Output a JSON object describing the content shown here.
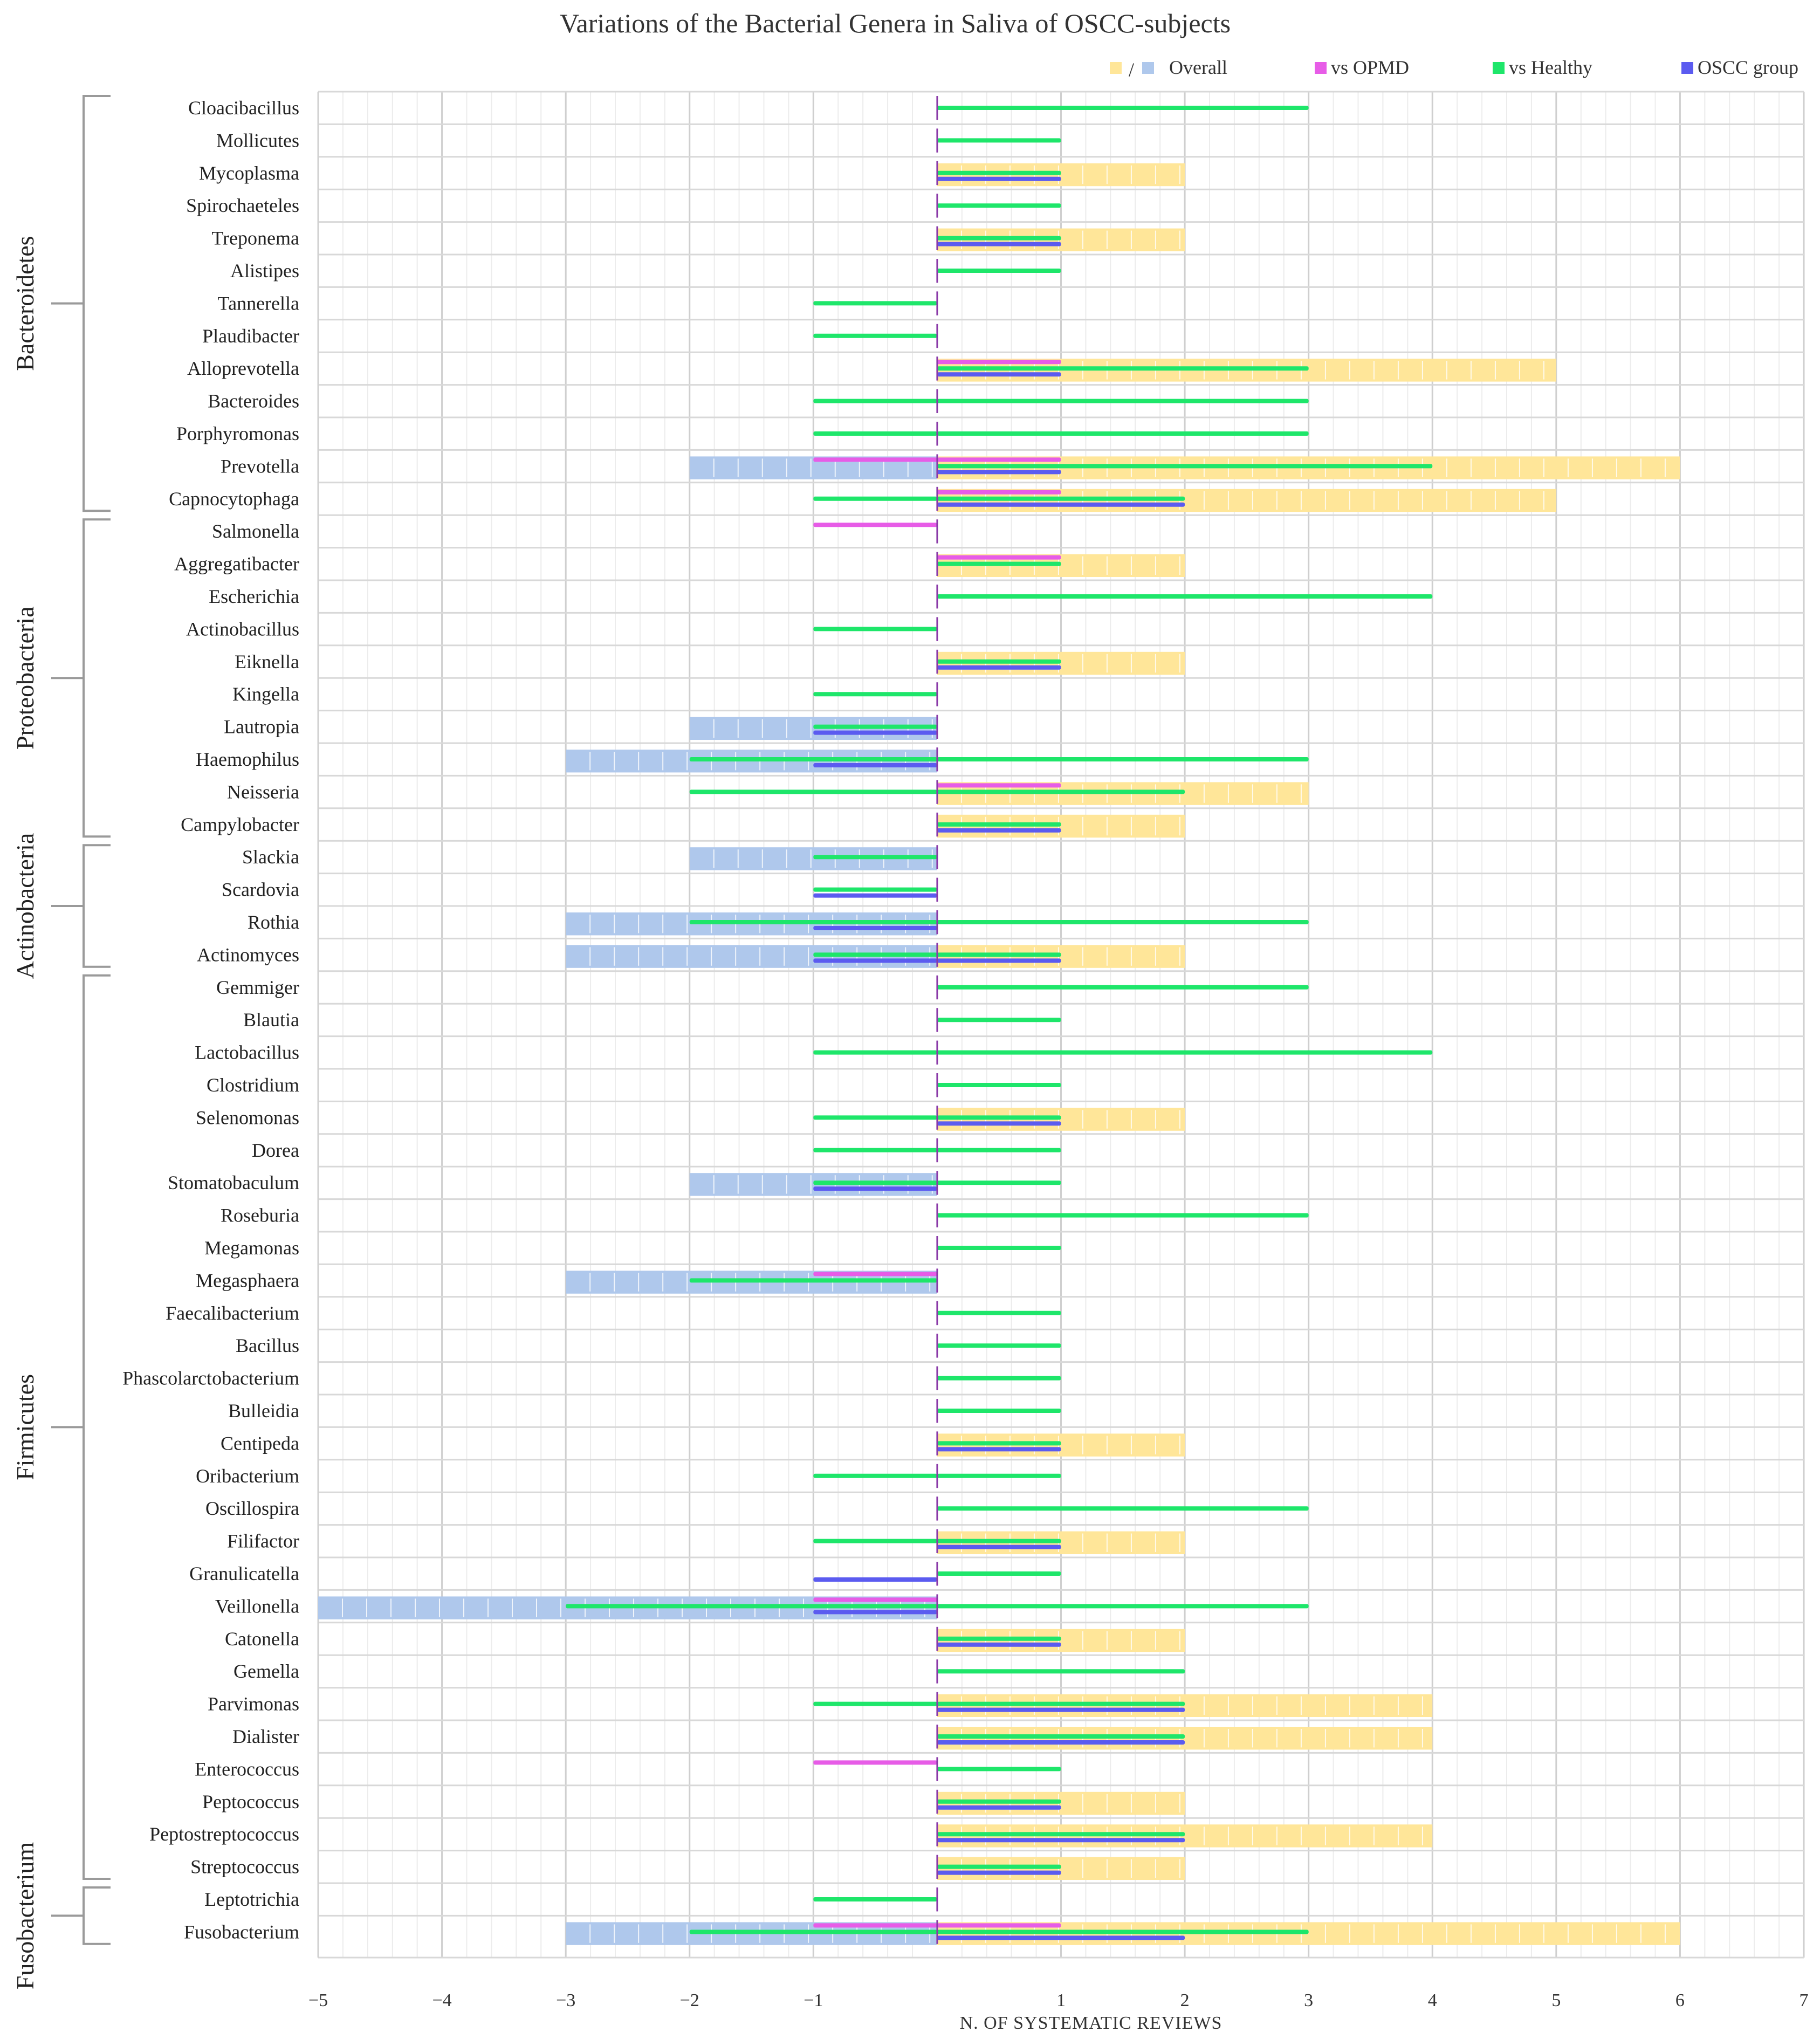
{
  "chart_data": {
    "type": "bar",
    "orientation": "horizontal",
    "title": "Variations of the Bacterial Genera in Saliva of OSCC-subjects",
    "xlabel": "N. OF SYSTEMATIC REVIEWS",
    "ylabel": "",
    "xlim": [
      -5,
      7
    ],
    "xticks": [
      -5,
      -4,
      -3,
      -2,
      -1,
      1,
      2,
      3,
      4,
      5,
      6,
      7
    ],
    "grid": true,
    "legend_position": "top-right",
    "legend": [
      {
        "key": "overall",
        "label": "Overall",
        "colors": [
          "#FFE699",
          "#AFC8EC"
        ],
        "separator": "/"
      },
      {
        "key": "opmd",
        "label": "vs OPMD",
        "color": "#E75CE7"
      },
      {
        "key": "healthy",
        "label": "vs Healthy",
        "color": "#1EE66A"
      },
      {
        "key": "oscc",
        "label": "OSCC group",
        "color": "#5B5BF0"
      }
    ],
    "colors": {
      "overall_pos": "#FFE699",
      "overall_neg": "#AFC8EC",
      "opmd": "#E75CE7",
      "healthy": "#1EE66A",
      "oscc": "#5B5BF0"
    },
    "phyla": [
      {
        "name": "Bacteroidetes",
        "first": "Cloacibacillus",
        "last": "Capnocytophaga"
      },
      {
        "name": "Proteobacteria",
        "first": "Salmonella",
        "last": "Campylobacter"
      },
      {
        "name": "Actinobacteria",
        "first": "Slackia",
        "last": "Actinomyces"
      },
      {
        "name": "Firmicutes",
        "first": "Gemmiger",
        "last": "Streptococcus"
      },
      {
        "name": "Fusobacterium",
        "first": "Leptotrichia",
        "last": "Fusobacterium"
      }
    ],
    "series_keys": [
      "overall_pos",
      "overall_neg",
      "opmd_pos",
      "opmd_neg",
      "healthy_pos",
      "healthy_neg",
      "oscc_pos",
      "oscc_neg"
    ],
    "genera": [
      {
        "name": "Cloacibacillus",
        "overall": [
          0,
          0
        ],
        "opmd": [
          0,
          0
        ],
        "healthy": [
          3,
          0
        ],
        "oscc": [
          0,
          0
        ]
      },
      {
        "name": "Mollicutes",
        "overall": [
          0,
          0
        ],
        "opmd": [
          0,
          0
        ],
        "healthy": [
          1,
          0
        ],
        "oscc": [
          0,
          0
        ]
      },
      {
        "name": "Mycoplasma",
        "overall": [
          2,
          0
        ],
        "opmd": [
          0,
          0
        ],
        "healthy": [
          1,
          0
        ],
        "oscc": [
          1,
          0
        ]
      },
      {
        "name": "Spirochaeteles",
        "overall": [
          0,
          0
        ],
        "opmd": [
          0,
          0
        ],
        "healthy": [
          1,
          0
        ],
        "oscc": [
          0,
          0
        ]
      },
      {
        "name": "Treponema",
        "overall": [
          2,
          0
        ],
        "opmd": [
          0,
          0
        ],
        "healthy": [
          1,
          0
        ],
        "oscc": [
          1,
          0
        ]
      },
      {
        "name": "Alistipes",
        "overall": [
          0,
          0
        ],
        "opmd": [
          0,
          0
        ],
        "healthy": [
          1,
          0
        ],
        "oscc": [
          0,
          0
        ]
      },
      {
        "name": "Tannerella",
        "overall": [
          0,
          0
        ],
        "opmd": [
          0,
          0
        ],
        "healthy": [
          0,
          -1
        ],
        "oscc": [
          0,
          0
        ]
      },
      {
        "name": "Plaudibacter",
        "overall": [
          0,
          0
        ],
        "opmd": [
          0,
          0
        ],
        "healthy": [
          0,
          -1
        ],
        "oscc": [
          0,
          0
        ]
      },
      {
        "name": "Alloprevotella",
        "overall": [
          5,
          0
        ],
        "opmd": [
          1,
          0
        ],
        "healthy": [
          3,
          0
        ],
        "oscc": [
          1,
          0
        ]
      },
      {
        "name": "Bacteroides",
        "overall": [
          0,
          0
        ],
        "opmd": [
          0,
          0
        ],
        "healthy": [
          3,
          -1
        ],
        "oscc": [
          0,
          0
        ]
      },
      {
        "name": "Porphyromonas",
        "overall": [
          0,
          0
        ],
        "opmd": [
          0,
          0
        ],
        "healthy": [
          3,
          -1
        ],
        "oscc": [
          0,
          0
        ]
      },
      {
        "name": "Prevotella",
        "overall": [
          6,
          -2
        ],
        "opmd": [
          1,
          -1
        ],
        "healthy": [
          4,
          0
        ],
        "oscc": [
          1,
          0
        ]
      },
      {
        "name": "Capnocytophaga",
        "overall": [
          5,
          0
        ],
        "opmd": [
          1,
          0
        ],
        "healthy": [
          2,
          -1
        ],
        "oscc": [
          2,
          0
        ]
      },
      {
        "name": "Salmonella",
        "overall": [
          0,
          0
        ],
        "opmd": [
          0,
          -1
        ],
        "healthy": [
          0,
          0
        ],
        "oscc": [
          0,
          0
        ]
      },
      {
        "name": "Aggregatibacter",
        "overall": [
          2,
          0
        ],
        "opmd": [
          1,
          0
        ],
        "healthy": [
          1,
          0
        ],
        "oscc": [
          0,
          0
        ]
      },
      {
        "name": "Escherichia",
        "overall": [
          0,
          0
        ],
        "opmd": [
          0,
          0
        ],
        "healthy": [
          4,
          0
        ],
        "oscc": [
          0,
          0
        ]
      },
      {
        "name": "Actinobacillus",
        "overall": [
          0,
          0
        ],
        "opmd": [
          0,
          0
        ],
        "healthy": [
          0,
          -1
        ],
        "oscc": [
          0,
          0
        ]
      },
      {
        "name": "Eiknella",
        "overall": [
          2,
          0
        ],
        "opmd": [
          0,
          0
        ],
        "healthy": [
          1,
          0
        ],
        "oscc": [
          1,
          0
        ]
      },
      {
        "name": "Kingella",
        "overall": [
          0,
          0
        ],
        "opmd": [
          0,
          0
        ],
        "healthy": [
          0,
          -1
        ],
        "oscc": [
          0,
          0
        ]
      },
      {
        "name": "Lautropia",
        "overall": [
          0,
          -2
        ],
        "opmd": [
          0,
          0
        ],
        "healthy": [
          0,
          -1
        ],
        "oscc": [
          0,
          -1
        ]
      },
      {
        "name": "Haemophilus",
        "overall": [
          0,
          -3
        ],
        "opmd": [
          0,
          0
        ],
        "healthy": [
          3,
          -2
        ],
        "oscc": [
          0,
          -1
        ]
      },
      {
        "name": "Neisseria",
        "overall": [
          3,
          0
        ],
        "opmd": [
          1,
          0
        ],
        "healthy": [
          2,
          -2
        ],
        "oscc": [
          0,
          0
        ]
      },
      {
        "name": "Campylobacter",
        "overall": [
          2,
          0
        ],
        "opmd": [
          0,
          0
        ],
        "healthy": [
          1,
          0
        ],
        "oscc": [
          1,
          0
        ]
      },
      {
        "name": "Slackia",
        "overall": [
          0,
          -2
        ],
        "opmd": [
          0,
          0
        ],
        "healthy": [
          0,
          -1
        ],
        "oscc": [
          0,
          0
        ]
      },
      {
        "name": "Scardovia",
        "overall": [
          0,
          0
        ],
        "opmd": [
          0,
          0
        ],
        "healthy": [
          0,
          -1
        ],
        "oscc": [
          0,
          -1
        ]
      },
      {
        "name": "Rothia",
        "overall": [
          0,
          -3
        ],
        "opmd": [
          0,
          0
        ],
        "healthy": [
          3,
          -2
        ],
        "oscc": [
          0,
          -1
        ]
      },
      {
        "name": "Actinomyces",
        "overall": [
          2,
          -3
        ],
        "opmd": [
          0,
          0
        ],
        "healthy": [
          1,
          -1
        ],
        "oscc": [
          1,
          -1
        ]
      },
      {
        "name": "Gemmiger",
        "overall": [
          0,
          0
        ],
        "opmd": [
          0,
          0
        ],
        "healthy": [
          3,
          0
        ],
        "oscc": [
          0,
          0
        ]
      },
      {
        "name": "Blautia",
        "overall": [
          0,
          0
        ],
        "opmd": [
          0,
          0
        ],
        "healthy": [
          1,
          0
        ],
        "oscc": [
          0,
          0
        ]
      },
      {
        "name": "Lactobacillus",
        "overall": [
          0,
          0
        ],
        "opmd": [
          0,
          0
        ],
        "healthy": [
          4,
          -1
        ],
        "oscc": [
          0,
          0
        ]
      },
      {
        "name": "Clostridium",
        "overall": [
          0,
          0
        ],
        "opmd": [
          0,
          0
        ],
        "healthy": [
          1,
          0
        ],
        "oscc": [
          0,
          0
        ]
      },
      {
        "name": "Selenomonas",
        "overall": [
          2,
          0
        ],
        "opmd": [
          0,
          0
        ],
        "healthy": [
          1,
          -1
        ],
        "oscc": [
          1,
          0
        ]
      },
      {
        "name": "Dorea",
        "overall": [
          0,
          0
        ],
        "opmd": [
          0,
          0
        ],
        "healthy": [
          1,
          -1
        ],
        "oscc": [
          0,
          0
        ]
      },
      {
        "name": "Stomatobaculum",
        "overall": [
          0,
          -2
        ],
        "opmd": [
          0,
          0
        ],
        "healthy": [
          1,
          -1
        ],
        "oscc": [
          0,
          -1
        ]
      },
      {
        "name": "Roseburia",
        "overall": [
          0,
          0
        ],
        "opmd": [
          0,
          0
        ],
        "healthy": [
          3,
          0
        ],
        "oscc": [
          0,
          0
        ]
      },
      {
        "name": "Megamonas",
        "overall": [
          0,
          0
        ],
        "opmd": [
          0,
          0
        ],
        "healthy": [
          1,
          0
        ],
        "oscc": [
          0,
          0
        ]
      },
      {
        "name": "Megasphaera",
        "overall": [
          0,
          -3
        ],
        "opmd": [
          0,
          -1
        ],
        "healthy": [
          0,
          -2
        ],
        "oscc": [
          0,
          0
        ]
      },
      {
        "name": "Faecalibacterium",
        "overall": [
          0,
          0
        ],
        "opmd": [
          0,
          0
        ],
        "healthy": [
          1,
          0
        ],
        "oscc": [
          0,
          0
        ]
      },
      {
        "name": "Bacillus",
        "overall": [
          0,
          0
        ],
        "opmd": [
          0,
          0
        ],
        "healthy": [
          1,
          0
        ],
        "oscc": [
          0,
          0
        ]
      },
      {
        "name": "Phascolarctobacterium",
        "overall": [
          0,
          0
        ],
        "opmd": [
          0,
          0
        ],
        "healthy": [
          1,
          0
        ],
        "oscc": [
          0,
          0
        ]
      },
      {
        "name": "Bulleidia",
        "overall": [
          0,
          0
        ],
        "opmd": [
          0,
          0
        ],
        "healthy": [
          1,
          0
        ],
        "oscc": [
          0,
          0
        ]
      },
      {
        "name": "Centipeda",
        "overall": [
          2,
          0
        ],
        "opmd": [
          0,
          0
        ],
        "healthy": [
          1,
          0
        ],
        "oscc": [
          1,
          0
        ]
      },
      {
        "name": "Oribacterium",
        "overall": [
          0,
          0
        ],
        "opmd": [
          0,
          0
        ],
        "healthy": [
          1,
          -1
        ],
        "oscc": [
          0,
          0
        ]
      },
      {
        "name": "Oscillospira",
        "overall": [
          0,
          0
        ],
        "opmd": [
          0,
          0
        ],
        "healthy": [
          3,
          0
        ],
        "oscc": [
          0,
          0
        ]
      },
      {
        "name": "Filifactor",
        "overall": [
          2,
          0
        ],
        "opmd": [
          0,
          0
        ],
        "healthy": [
          1,
          -1
        ],
        "oscc": [
          1,
          0
        ]
      },
      {
        "name": "Granulicatella",
        "overall": [
          0,
          0
        ],
        "opmd": [
          0,
          0
        ],
        "healthy": [
          1,
          0
        ],
        "oscc": [
          0,
          -1
        ]
      },
      {
        "name": "Veillonella",
        "overall": [
          0,
          -5
        ],
        "opmd": [
          0,
          -1
        ],
        "healthy": [
          3,
          -3
        ],
        "oscc": [
          0,
          -1
        ]
      },
      {
        "name": "Catonella",
        "overall": [
          2,
          0
        ],
        "opmd": [
          0,
          0
        ],
        "healthy": [
          1,
          0
        ],
        "oscc": [
          1,
          0
        ]
      },
      {
        "name": "Gemella",
        "overall": [
          0,
          0
        ],
        "opmd": [
          0,
          0
        ],
        "healthy": [
          2,
          0
        ],
        "oscc": [
          0,
          0
        ]
      },
      {
        "name": "Parvimonas",
        "overall": [
          4,
          0
        ],
        "opmd": [
          0,
          0
        ],
        "healthy": [
          2,
          -1
        ],
        "oscc": [
          2,
          0
        ]
      },
      {
        "name": "Dialister",
        "overall": [
          4,
          0
        ],
        "opmd": [
          0,
          0
        ],
        "healthy": [
          2,
          0
        ],
        "oscc": [
          2,
          0
        ]
      },
      {
        "name": "Enterococcus",
        "overall": [
          0,
          0
        ],
        "opmd": [
          0,
          -1
        ],
        "healthy": [
          1,
          0
        ],
        "oscc": [
          0,
          0
        ]
      },
      {
        "name": "Peptococcus",
        "overall": [
          2,
          0
        ],
        "opmd": [
          0,
          0
        ],
        "healthy": [
          1,
          0
        ],
        "oscc": [
          1,
          0
        ]
      },
      {
        "name": "Peptostreptococcus",
        "overall": [
          4,
          0
        ],
        "opmd": [
          0,
          0
        ],
        "healthy": [
          2,
          0
        ],
        "oscc": [
          2,
          0
        ]
      },
      {
        "name": "Streptococcus",
        "overall": [
          2,
          0
        ],
        "opmd": [
          0,
          0
        ],
        "healthy": [
          1,
          0
        ],
        "oscc": [
          1,
          0
        ]
      },
      {
        "name": "Leptotrichia",
        "overall": [
          0,
          0
        ],
        "opmd": [
          0,
          0
        ],
        "healthy": [
          0,
          -1
        ],
        "oscc": [
          0,
          0
        ]
      },
      {
        "name": "Fusobacterium",
        "overall": [
          6,
          -3
        ],
        "opmd": [
          1,
          -1
        ],
        "healthy": [
          3,
          -2
        ],
        "oscc": [
          2,
          0
        ]
      }
    ]
  }
}
